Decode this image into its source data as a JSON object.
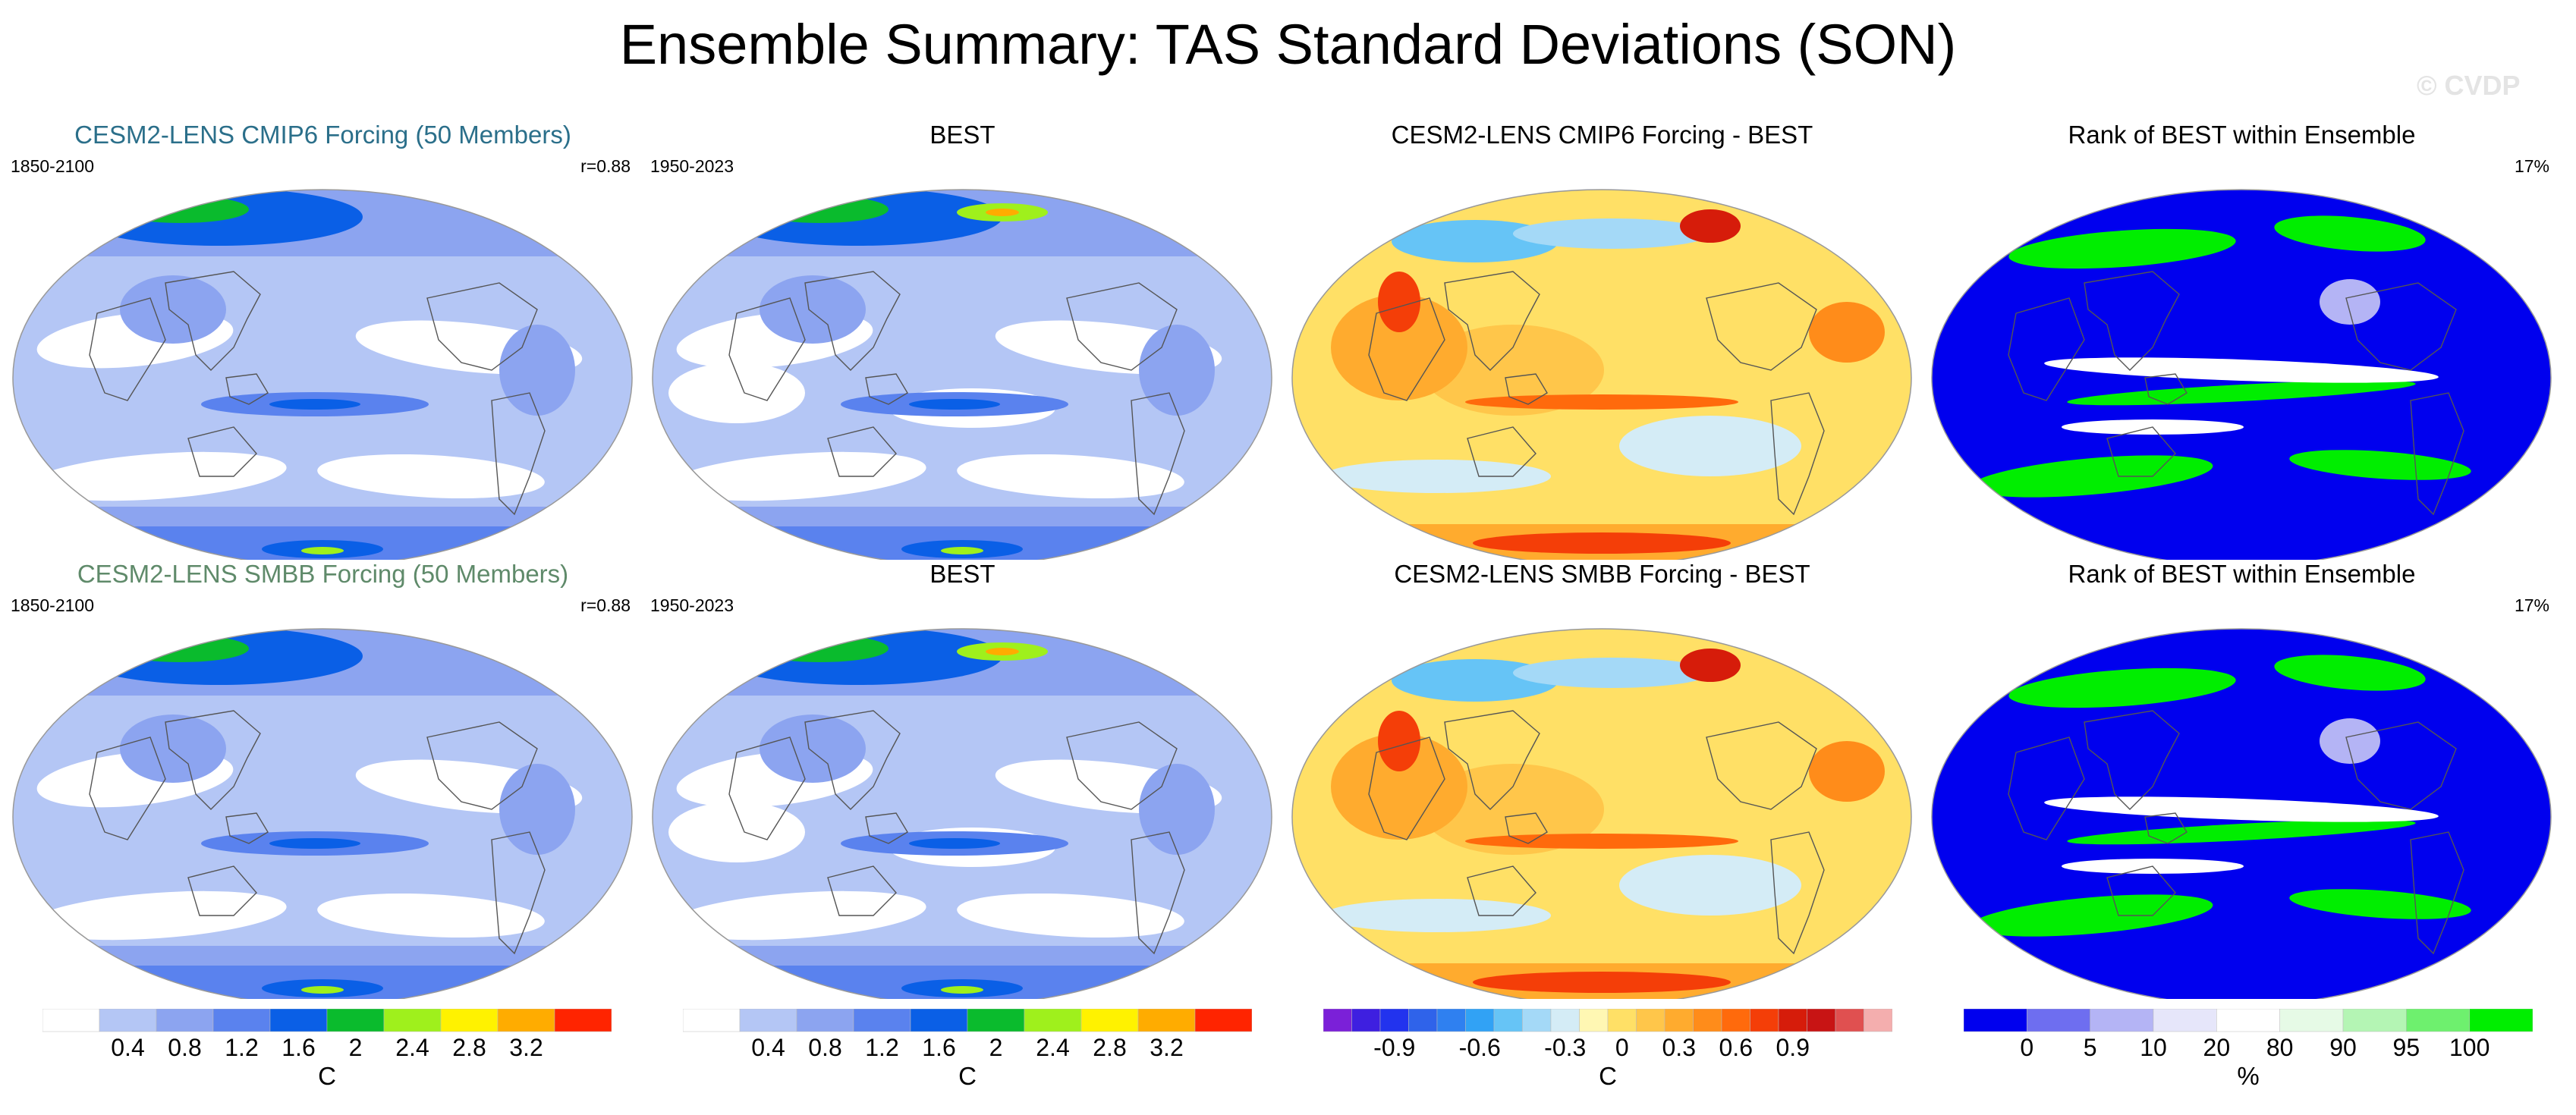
{
  "figure": {
    "title": "Ensemble Summary: TAS Standard Deviations (SON)",
    "watermark": "© CVDP"
  },
  "colors": {
    "title_cmip6": "#2b6f8a",
    "title_smbb": "#5f8a6a",
    "ocean_outline": "#999999",
    "coast": "#555555"
  },
  "rows": [
    {
      "panels": [
        {
          "kind": "sd",
          "title": "CESM2-LENS CMIP6 Forcing (50 Members)",
          "title_color": "title_cmip6",
          "left": "1850-2100",
          "right": "r=0.88"
        },
        {
          "kind": "sd_obs",
          "title": "BEST",
          "left": "1950-2023",
          "right": ""
        },
        {
          "kind": "diff",
          "title": "CESM2-LENS CMIP6 Forcing - BEST",
          "left": "",
          "right": ""
        },
        {
          "kind": "rank",
          "title": "Rank of BEST within Ensemble",
          "left": "",
          "right": "17%"
        }
      ]
    },
    {
      "panels": [
        {
          "kind": "sd",
          "title": "CESM2-LENS SMBB Forcing (50 Members)",
          "title_color": "title_smbb",
          "left": "1850-2100",
          "right": "r=0.88"
        },
        {
          "kind": "sd_obs",
          "title": "BEST",
          "left": "1950-2023",
          "right": ""
        },
        {
          "kind": "diff",
          "title": "CESM2-LENS SMBB Forcing - BEST",
          "left": "",
          "right": ""
        },
        {
          "kind": "rank",
          "title": "Rank of BEST within Ensemble",
          "left": "",
          "right": "17%"
        }
      ]
    }
  ],
  "colorbars": [
    {
      "name": "sd",
      "units": "C",
      "colors": [
        "#ffffff",
        "#b4c6f5",
        "#8ca4f0",
        "#5a82ee",
        "#0a5fe6",
        "#0abb2d",
        "#9ff01c",
        "#fff200",
        "#ffac00",
        "#ff2400"
      ],
      "labels": [
        "0.4",
        "0.8",
        "1.2",
        "1.6",
        "2",
        "2.4",
        "2.8",
        "3.2"
      ]
    },
    {
      "name": "sd2",
      "units": "C",
      "colors": [
        "#ffffff",
        "#b4c6f5",
        "#8ca4f0",
        "#5a82ee",
        "#0a5fe6",
        "#0abb2d",
        "#9ff01c",
        "#fff200",
        "#ffac00",
        "#ff2400"
      ],
      "labels": [
        "0.4",
        "0.8",
        "1.2",
        "1.6",
        "2",
        "2.4",
        "2.8",
        "3.2"
      ]
    },
    {
      "name": "diff",
      "units": "C",
      "colors": [
        "#7b20d8",
        "#3e1fe0",
        "#2233ee",
        "#2f63ea",
        "#2f80f0",
        "#31a2f5",
        "#66c4f6",
        "#a4d9f7",
        "#d4ecf6",
        "#fff7b3",
        "#ffe066",
        "#ffc64a",
        "#ffab2e",
        "#ff8c1a",
        "#ff6a0c",
        "#f43e08",
        "#d61c0a",
        "#c81414",
        "#e05050",
        "#f4aeae"
      ],
      "labels": [
        "-0.9",
        "-0.6",
        "-0.3",
        "0",
        "0.3",
        "0.6",
        "0.9"
      ]
    },
    {
      "name": "rank",
      "units": "%",
      "colors": [
        "#0000ee",
        "#6e6ef0",
        "#b4b4f5",
        "#e6e6fa",
        "#ffffff",
        "#e6fae6",
        "#b4f5b4",
        "#6ef06e",
        "#00ee00"
      ],
      "labels": [
        "0",
        "5",
        "10",
        "20",
        "80",
        "90",
        "95",
        "100"
      ]
    }
  ],
  "chart_data": {
    "type": "map-panels",
    "title": "Ensemble Summary: TAS Standard Deviations (SON)",
    "variable": "TAS standard deviation",
    "season": "SON",
    "units_sd": "C",
    "sd_levels": [
      0.4,
      0.8,
      1.2,
      1.6,
      2,
      2.4,
      2.8,
      3.2
    ],
    "diff_levels": [
      -0.9,
      -0.6,
      -0.3,
      0,
      0.3,
      0.6,
      0.9
    ],
    "rank_levels": [
      0,
      5,
      10,
      20,
      80,
      90,
      95,
      100
    ],
    "pattern_correlation": 0.88,
    "rank_summary_pct": 17
  }
}
